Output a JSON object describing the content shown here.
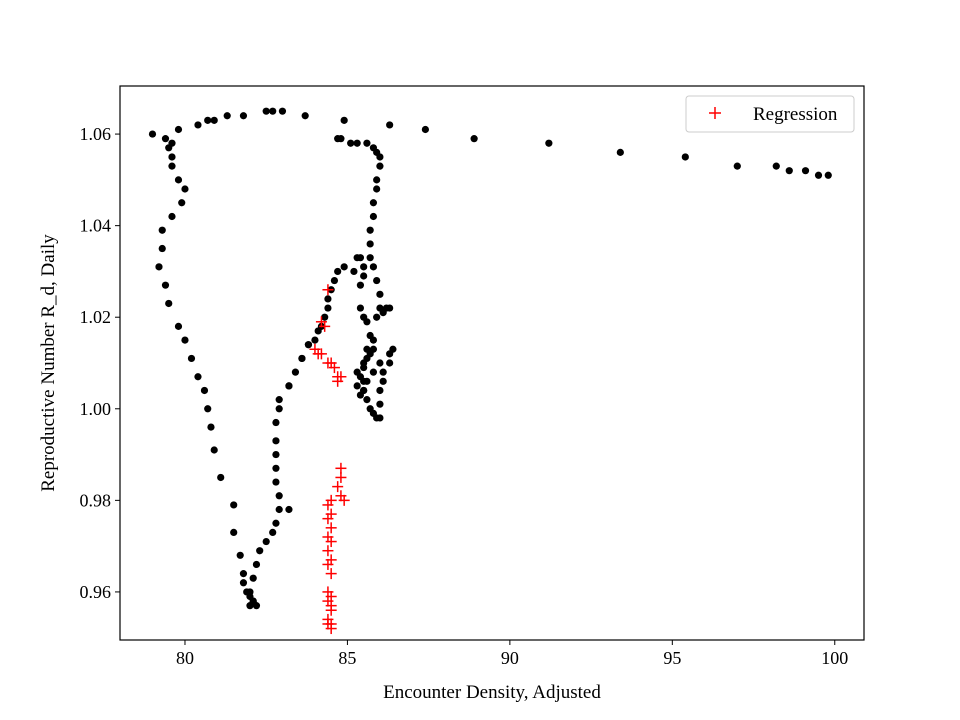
{
  "chart_data": {
    "type": "scatter",
    "title": "",
    "xlabel": "Encounter Density, Adjusted",
    "ylabel": "Reproductive Number R_d, Daily",
    "xlim": [
      78.0,
      100.9
    ],
    "ylim": [
      0.9495,
      1.0705
    ],
    "xticks": [
      80,
      85,
      90,
      95,
      100
    ],
    "yticks": [
      0.96,
      0.98,
      1.0,
      1.02,
      1.04,
      1.06
    ],
    "xtick_labels": [
      "80",
      "85",
      "90",
      "95",
      "100"
    ],
    "ytick_labels": [
      "0.96",
      "0.98",
      "1.00",
      "1.02",
      "1.04",
      "1.06"
    ],
    "grid": false,
    "legend_position": "top-right",
    "series": [
      {
        "name": "",
        "marker": "circle",
        "color": "#000000",
        "points": [
          [
            79.0,
            1.06
          ],
          [
            79.4,
            1.059
          ],
          [
            79.5,
            1.057
          ],
          [
            79.6,
            1.058
          ],
          [
            79.8,
            1.061
          ],
          [
            80.4,
            1.062
          ],
          [
            80.7,
            1.063
          ],
          [
            80.9,
            1.063
          ],
          [
            81.3,
            1.064
          ],
          [
            81.8,
            1.064
          ],
          [
            82.5,
            1.065
          ],
          [
            82.7,
            1.065
          ],
          [
            83.0,
            1.065
          ],
          [
            83.7,
            1.064
          ],
          [
            84.9,
            1.063
          ],
          [
            86.3,
            1.062
          ],
          [
            87.4,
            1.061
          ],
          [
            88.9,
            1.059
          ],
          [
            91.2,
            1.058
          ],
          [
            93.4,
            1.056
          ],
          [
            95.4,
            1.055
          ],
          [
            97.0,
            1.053
          ],
          [
            98.2,
            1.053
          ],
          [
            98.6,
            1.052
          ],
          [
            99.1,
            1.052
          ],
          [
            99.5,
            1.051
          ],
          [
            99.8,
            1.051
          ],
          [
            84.8,
            1.059
          ],
          [
            84.7,
            1.059
          ],
          [
            85.1,
            1.058
          ],
          [
            85.3,
            1.058
          ],
          [
            85.6,
            1.058
          ],
          [
            85.8,
            1.057
          ],
          [
            85.9,
            1.056
          ],
          [
            86.0,
            1.055
          ],
          [
            86.0,
            1.053
          ],
          [
            85.9,
            1.05
          ],
          [
            85.9,
            1.048
          ],
          [
            85.8,
            1.045
          ],
          [
            85.8,
            1.042
          ],
          [
            85.7,
            1.039
          ],
          [
            85.7,
            1.036
          ],
          [
            85.7,
            1.033
          ],
          [
            85.8,
            1.031
          ],
          [
            85.9,
            1.028
          ],
          [
            86.0,
            1.025
          ],
          [
            86.0,
            1.022
          ],
          [
            86.2,
            1.022
          ],
          [
            86.3,
            1.022
          ],
          [
            86.1,
            1.021
          ],
          [
            85.9,
            1.02
          ],
          [
            85.3,
            1.033
          ],
          [
            85.4,
            1.033
          ],
          [
            85.5,
            1.031
          ],
          [
            85.5,
            1.029
          ],
          [
            85.4,
            1.027
          ],
          [
            85.2,
            1.03
          ],
          [
            84.9,
            1.031
          ],
          [
            84.7,
            1.03
          ],
          [
            84.6,
            1.028
          ],
          [
            84.5,
            1.026
          ],
          [
            84.4,
            1.024
          ],
          [
            84.4,
            1.022
          ],
          [
            84.3,
            1.02
          ],
          [
            84.2,
            1.018
          ],
          [
            84.1,
            1.017
          ],
          [
            84.0,
            1.015
          ],
          [
            83.8,
            1.014
          ],
          [
            83.6,
            1.011
          ],
          [
            83.4,
            1.008
          ],
          [
            83.2,
            1.005
          ],
          [
            85.4,
            1.022
          ],
          [
            85.5,
            1.02
          ],
          [
            85.6,
            1.019
          ],
          [
            85.7,
            1.016
          ],
          [
            85.6,
            1.013
          ],
          [
            85.5,
            1.01
          ],
          [
            85.4,
            1.007
          ],
          [
            85.5,
            1.004
          ],
          [
            85.6,
            1.002
          ],
          [
            85.7,
            1.0
          ],
          [
            85.8,
            0.999
          ],
          [
            85.9,
            0.998
          ],
          [
            86.0,
            0.998
          ],
          [
            86.0,
            1.001
          ],
          [
            86.0,
            1.004
          ],
          [
            86.1,
            1.006
          ],
          [
            86.1,
            1.008
          ],
          [
            86.3,
            1.01
          ],
          [
            86.3,
            1.012
          ],
          [
            86.4,
            1.013
          ],
          [
            86.0,
            1.01
          ],
          [
            85.8,
            1.008
          ],
          [
            85.6,
            1.006
          ],
          [
            85.5,
            1.004
          ],
          [
            85.4,
            1.003
          ],
          [
            85.3,
            1.005
          ],
          [
            85.3,
            1.008
          ],
          [
            85.5,
            1.009
          ],
          [
            85.6,
            1.011
          ],
          [
            85.7,
            1.012
          ],
          [
            85.8,
            1.013
          ],
          [
            85.8,
            1.015
          ],
          [
            85.5,
            1.006
          ],
          [
            79.6,
            1.055
          ],
          [
            79.6,
            1.053
          ],
          [
            79.8,
            1.05
          ],
          [
            80.0,
            1.048
          ],
          [
            79.9,
            1.045
          ],
          [
            79.6,
            1.042
          ],
          [
            79.3,
            1.039
          ],
          [
            79.3,
            1.035
          ],
          [
            79.2,
            1.031
          ],
          [
            79.4,
            1.027
          ],
          [
            79.5,
            1.023
          ],
          [
            79.8,
            1.018
          ],
          [
            80.0,
            1.015
          ],
          [
            80.2,
            1.011
          ],
          [
            80.4,
            1.007
          ],
          [
            80.6,
            1.004
          ],
          [
            80.7,
            1.0
          ],
          [
            80.8,
            0.996
          ],
          [
            80.9,
            0.991
          ],
          [
            81.1,
            0.985
          ],
          [
            81.5,
            0.979
          ],
          [
            81.5,
            0.973
          ],
          [
            81.7,
            0.968
          ],
          [
            81.8,
            0.964
          ],
          [
            81.8,
            0.962
          ],
          [
            81.9,
            0.96
          ],
          [
            82.0,
            0.959
          ],
          [
            82.1,
            0.958
          ],
          [
            82.0,
            0.957
          ],
          [
            82.1,
            0.958
          ],
          [
            82.2,
            0.957
          ],
          [
            82.0,
            0.96
          ],
          [
            82.1,
            0.963
          ],
          [
            82.2,
            0.966
          ],
          [
            82.3,
            0.969
          ],
          [
            82.5,
            0.971
          ],
          [
            82.7,
            0.973
          ],
          [
            82.8,
            0.975
          ],
          [
            82.9,
            0.978
          ],
          [
            83.2,
            0.978
          ],
          [
            82.9,
            0.981
          ],
          [
            82.8,
            0.984
          ],
          [
            82.8,
            0.987
          ],
          [
            82.8,
            0.99
          ],
          [
            82.8,
            0.993
          ],
          [
            82.8,
            0.997
          ],
          [
            82.9,
            1.0
          ],
          [
            82.9,
            1.002
          ],
          [
            83.2,
            1.005
          ],
          [
            83.6,
            1.011
          ],
          [
            83.8,
            1.014
          ]
        ]
      },
      {
        "name": "Regression",
        "marker": "plus",
        "color": "#ff0000",
        "points": [
          [
            84.4,
            1.026
          ],
          [
            84.3,
            1.018
          ],
          [
            84.2,
            1.019
          ],
          [
            84.0,
            1.013
          ],
          [
            84.1,
            1.012
          ],
          [
            84.2,
            1.012
          ],
          [
            84.4,
            1.01
          ],
          [
            84.5,
            1.01
          ],
          [
            84.6,
            1.009
          ],
          [
            84.7,
            1.007
          ],
          [
            84.8,
            1.007
          ],
          [
            84.7,
            1.006
          ],
          [
            84.8,
            0.987
          ],
          [
            84.8,
            0.985
          ],
          [
            84.7,
            0.983
          ],
          [
            84.8,
            0.981
          ],
          [
            84.9,
            0.98
          ],
          [
            84.5,
            0.98
          ],
          [
            84.4,
            0.979
          ],
          [
            84.5,
            0.977
          ],
          [
            84.4,
            0.976
          ],
          [
            84.5,
            0.974
          ],
          [
            84.4,
            0.972
          ],
          [
            84.5,
            0.971
          ],
          [
            84.4,
            0.969
          ],
          [
            84.5,
            0.967
          ],
          [
            84.4,
            0.966
          ],
          [
            84.5,
            0.964
          ],
          [
            84.4,
            0.96
          ],
          [
            84.5,
            0.959
          ],
          [
            84.4,
            0.958
          ],
          [
            84.5,
            0.957
          ],
          [
            84.5,
            0.956
          ],
          [
            84.4,
            0.954
          ],
          [
            84.5,
            0.953
          ],
          [
            84.4,
            0.953
          ],
          [
            84.5,
            0.952
          ]
        ]
      }
    ]
  }
}
